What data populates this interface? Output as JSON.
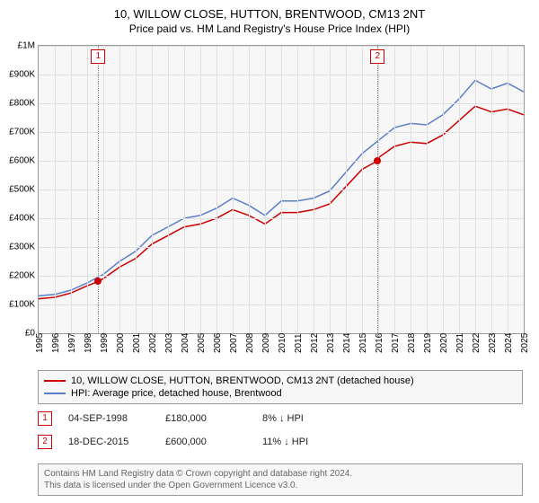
{
  "title": "10, WILLOW CLOSE, HUTTON, BRENTWOOD, CM13 2NT",
  "subtitle": "Price paid vs. HM Land Registry's House Price Index (HPI)",
  "chart": {
    "type": "line",
    "background_color": "#f7f7f7",
    "grid_color": "#e0e0e0",
    "border_color": "#999999",
    "text_color": "#000000",
    "label_fontsize": 10,
    "xlim": [
      1995,
      2025
    ],
    "ylim": [
      0,
      1000000
    ],
    "ytick_step": 100000,
    "y_ticks": [
      "£0",
      "£100K",
      "£200K",
      "£300K",
      "£400K",
      "£500K",
      "£600K",
      "£700K",
      "£800K",
      "£900K",
      "£1M"
    ],
    "x_ticks": [
      1995,
      1996,
      1997,
      1998,
      1999,
      2000,
      2001,
      2002,
      2003,
      2004,
      2005,
      2006,
      2007,
      2008,
      2009,
      2010,
      2011,
      2012,
      2013,
      2014,
      2015,
      2016,
      2017,
      2018,
      2019,
      2020,
      2021,
      2022,
      2023,
      2024,
      2025
    ],
    "series": [
      {
        "name": "red",
        "color": "#cc0000",
        "line_width": 1.5,
        "label": "10, WILLOW CLOSE, HUTTON, BRENTWOOD, CM13 2NT (detached house)",
        "points": [
          [
            1995,
            120000
          ],
          [
            1996,
            125000
          ],
          [
            1997,
            140000
          ],
          [
            1998,
            165000
          ],
          [
            1998.68,
            180000
          ],
          [
            1999,
            190000
          ],
          [
            2000,
            230000
          ],
          [
            2001,
            260000
          ],
          [
            2002,
            310000
          ],
          [
            2003,
            340000
          ],
          [
            2004,
            370000
          ],
          [
            2005,
            380000
          ],
          [
            2006,
            400000
          ],
          [
            2007,
            430000
          ],
          [
            2008,
            410000
          ],
          [
            2009,
            380000
          ],
          [
            2010,
            420000
          ],
          [
            2011,
            420000
          ],
          [
            2012,
            430000
          ],
          [
            2013,
            450000
          ],
          [
            2014,
            510000
          ],
          [
            2015,
            570000
          ],
          [
            2015.96,
            600000
          ],
          [
            2016,
            610000
          ],
          [
            2017,
            650000
          ],
          [
            2018,
            665000
          ],
          [
            2019,
            660000
          ],
          [
            2020,
            690000
          ],
          [
            2021,
            740000
          ],
          [
            2022,
            790000
          ],
          [
            2023,
            770000
          ],
          [
            2024,
            780000
          ],
          [
            2025,
            760000
          ]
        ]
      },
      {
        "name": "blue",
        "color": "#5b7ec7",
        "line_width": 1.5,
        "label": "HPI: Average price, detached house, Brentwood",
        "points": [
          [
            1995,
            130000
          ],
          [
            1996,
            135000
          ],
          [
            1997,
            150000
          ],
          [
            1998,
            175000
          ],
          [
            1999,
            205000
          ],
          [
            2000,
            250000
          ],
          [
            2001,
            285000
          ],
          [
            2002,
            340000
          ],
          [
            2003,
            370000
          ],
          [
            2004,
            400000
          ],
          [
            2005,
            410000
          ],
          [
            2006,
            435000
          ],
          [
            2007,
            470000
          ],
          [
            2008,
            445000
          ],
          [
            2009,
            410000
          ],
          [
            2010,
            460000
          ],
          [
            2011,
            460000
          ],
          [
            2012,
            470000
          ],
          [
            2013,
            495000
          ],
          [
            2014,
            560000
          ],
          [
            2015,
            625000
          ],
          [
            2016,
            670000
          ],
          [
            2017,
            715000
          ],
          [
            2018,
            730000
          ],
          [
            2019,
            725000
          ],
          [
            2020,
            760000
          ],
          [
            2021,
            815000
          ],
          [
            2022,
            880000
          ],
          [
            2023,
            850000
          ],
          [
            2024,
            870000
          ],
          [
            2025,
            840000
          ]
        ]
      }
    ],
    "markers": [
      {
        "index": 1,
        "x": 1998.68,
        "y": 180000,
        "line_color": "#888888"
      },
      {
        "index": 2,
        "x": 2015.96,
        "y": 600000,
        "line_color": "#888888"
      }
    ],
    "marker_badge_border": "#cc0000",
    "marker_dot_color": "#cc0000"
  },
  "legend": {
    "items": [
      {
        "color": "#cc0000",
        "label": "10, WILLOW CLOSE, HUTTON, BRENTWOOD, CM13 2NT (detached house)"
      },
      {
        "color": "#5b7ec7",
        "label": "HPI: Average price, detached house, Brentwood"
      }
    ]
  },
  "sales": [
    {
      "index": 1,
      "date": "04-SEP-1998",
      "price": "£180,000",
      "delta": "8% ↓ HPI"
    },
    {
      "index": 2,
      "date": "18-DEC-2015",
      "price": "£600,000",
      "delta": "11% ↓ HPI"
    }
  ],
  "footer": {
    "line1": "Contains HM Land Registry data © Crown copyright and database right 2024.",
    "line2": "This data is licensed under the Open Government Licence v3.0."
  }
}
